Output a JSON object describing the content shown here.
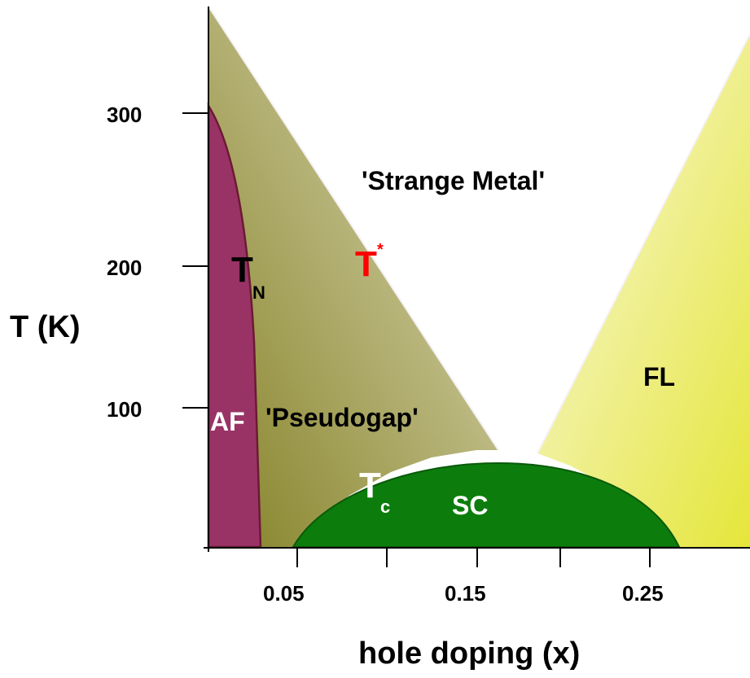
{
  "axes": {
    "y_title": "T (K)",
    "x_title": "hole doping (x)",
    "y_ticks": [
      {
        "value": 100,
        "label": "100"
      },
      {
        "value": 200,
        "label": "200"
      },
      {
        "value": 300,
        "label": "300"
      }
    ],
    "x_ticks": [
      {
        "value": 0.05,
        "label": "0.05"
      },
      {
        "value": 0.1,
        "label": ""
      },
      {
        "value": 0.15,
        "label": "0.15"
      },
      {
        "value": 0.2,
        "label": ""
      },
      {
        "value": 0.25,
        "label": "0.25"
      }
    ]
  },
  "regions": {
    "strange_metal": "'Strange Metal'",
    "pseudogap": "'Pseudogap'",
    "af": "AF",
    "fl": "FL",
    "sc": "SC"
  },
  "symbols": {
    "t_star": {
      "main": "T",
      "sup": "*"
    },
    "t_n": {
      "main": "T",
      "sub": "N"
    },
    "t_c": {
      "main": "T",
      "sub": "c"
    }
  },
  "colors": {
    "af_fill": "#993366",
    "af_edge": "#6b1a33",
    "pseudogap_dark": "#858227",
    "pseudogap_light": "#e2e1c6",
    "fl_dark": "#e5e63a",
    "fl_light": "#f7f7cf",
    "sc_fill": "#0c7d0c",
    "sc_edge": "#0a5a0a",
    "t_star_color": "#ff0000",
    "white_text": "#ffffff",
    "black_text": "#000000"
  }
}
